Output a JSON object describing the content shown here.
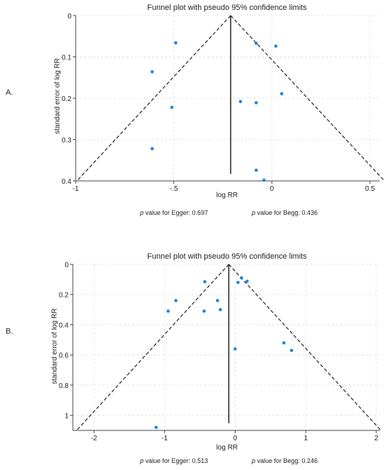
{
  "chart_data": [
    {
      "panel_label": "A.",
      "type": "scatter",
      "title": "Funnel plot with pseudo 95% confidence limits",
      "xlabel": "log RR",
      "ylabel": "standard error of log RR",
      "xlim": [
        -1,
        0.55
      ],
      "ylim": [
        0,
        0.4
      ],
      "y_reversed": true,
      "x_ticks": [
        {
          "v": -1,
          "label": "-1"
        },
        {
          "v": -0.5,
          "label": "-.5"
        },
        {
          "v": 0,
          "label": "0"
        },
        {
          "v": 0.5,
          "label": "0.5"
        }
      ],
      "y_ticks": [
        {
          "v": 0,
          "label": "0"
        },
        {
          "v": 0.1,
          "label": "0.1"
        },
        {
          "v": 0.2,
          "label": "0.2"
        },
        {
          "v": 0.3,
          "label": "0.3"
        },
        {
          "v": 0.4,
          "label": "0.4"
        }
      ],
      "grid": true,
      "point_color": "#1f86e0",
      "pooled_estimate": -0.21,
      "ci_line_bottom_se": 0.4,
      "points": [
        {
          "x": -0.49,
          "y": 0.066
        },
        {
          "x": -0.61,
          "y": 0.136
        },
        {
          "x": -0.51,
          "y": 0.222
        },
        {
          "x": -0.61,
          "y": 0.322
        },
        {
          "x": -0.08,
          "y": 0.067
        },
        {
          "x": 0.02,
          "y": 0.074
        },
        {
          "x": 0.05,
          "y": 0.189
        },
        {
          "x": -0.16,
          "y": 0.208
        },
        {
          "x": -0.08,
          "y": 0.211
        },
        {
          "x": -0.08,
          "y": 0.374
        },
        {
          "x": -0.04,
          "y": 0.398
        }
      ],
      "egger_label": "p",
      "egger_text": " value for Egger: 0.697",
      "begg_label": "p",
      "begg_text": " value for Begg: 0.436"
    },
    {
      "panel_label": "B.",
      "type": "scatter",
      "title": "Funnel plot with pseudo 95% confidence limits",
      "xlabel": "log RR",
      "ylabel": "standard error of log RR",
      "xlim": [
        -2.3,
        2.05
      ],
      "ylim": [
        0,
        1.1
      ],
      "y_reversed": true,
      "x_ticks": [
        {
          "v": -2,
          "label": "-2"
        },
        {
          "v": -1,
          "label": "-1"
        },
        {
          "v": 0,
          "label": "0"
        },
        {
          "v": 1,
          "label": "1"
        },
        {
          "v": 2,
          "label": "2"
        }
      ],
      "y_ticks": [
        {
          "v": 0,
          "label": "0"
        },
        {
          "v": 0.2,
          "label": "0.2"
        },
        {
          "v": 0.4,
          "label": "0.4"
        },
        {
          "v": 0.6,
          "label": "0.6"
        },
        {
          "v": 0.8,
          "label": "0.8"
        },
        {
          "v": 1,
          "label": "1"
        }
      ],
      "grid": true,
      "point_color": "#1f86e0",
      "pooled_estimate": -0.09,
      "ci_line_bottom_se": 1.1,
      "points": [
        {
          "x": -0.43,
          "y": 0.115
        },
        {
          "x": 0.04,
          "y": 0.12
        },
        {
          "x": 0.09,
          "y": 0.09
        },
        {
          "x": 0.17,
          "y": 0.112
        },
        {
          "x": -0.84,
          "y": 0.24
        },
        {
          "x": -0.25,
          "y": 0.24
        },
        {
          "x": -0.95,
          "y": 0.31
        },
        {
          "x": -0.44,
          "y": 0.31
        },
        {
          "x": -0.21,
          "y": 0.3
        },
        {
          "x": 0.0,
          "y": 0.56
        },
        {
          "x": 0.69,
          "y": 0.52
        },
        {
          "x": 0.8,
          "y": 0.57
        },
        {
          "x": -1.12,
          "y": 1.08
        }
      ],
      "egger_label": "p",
      "egger_text": " value for Egger: 0.513",
      "begg_label": "p",
      "begg_text": " value for Begg: 0.246"
    }
  ]
}
